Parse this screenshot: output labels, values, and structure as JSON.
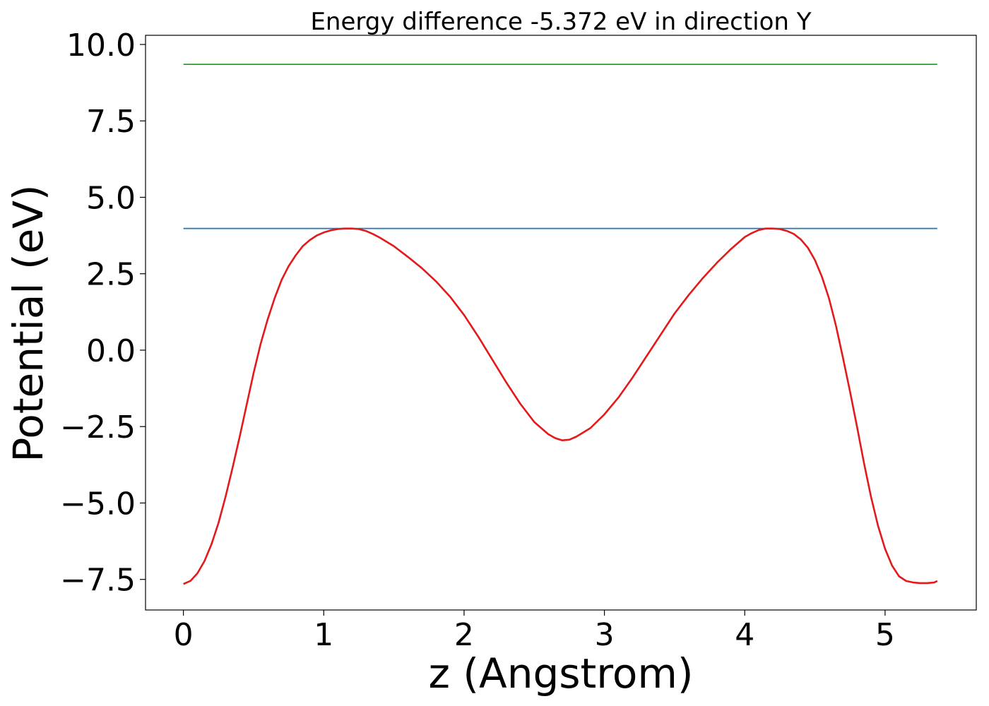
{
  "chart_data": {
    "type": "line",
    "title": "Energy difference -5.372 eV in direction Y",
    "xlabel": "z (Angstrom)",
    "ylabel": "Potential (eV)",
    "xlim": [
      -0.27,
      5.65
    ],
    "ylim": [
      -8.5,
      10.3
    ],
    "grid": false,
    "legend": "none",
    "x_ticks": [
      {
        "value": 0,
        "label": "0"
      },
      {
        "value": 1,
        "label": "1"
      },
      {
        "value": 2,
        "label": "2"
      },
      {
        "value": 3,
        "label": "3"
      },
      {
        "value": 4,
        "label": "4"
      },
      {
        "value": 5,
        "label": "5"
      }
    ],
    "y_ticks": [
      {
        "value": -7.5,
        "label": "−7.5"
      },
      {
        "value": -5.0,
        "label": "−5.0"
      },
      {
        "value": -2.5,
        "label": "−2.5"
      },
      {
        "value": 0.0,
        "label": "0.0"
      },
      {
        "value": 2.5,
        "label": "2.5"
      },
      {
        "value": 5.0,
        "label": "5.0"
      },
      {
        "value": 7.5,
        "label": "7.5"
      },
      {
        "value": 10.0,
        "label": "10.0"
      }
    ],
    "series": [
      {
        "color": "#2ca02c",
        "x": [
          0,
          5.372
        ],
        "y": [
          9.35,
          9.35
        ]
      },
      {
        "color": "#1f77b4",
        "x": [
          0,
          5.372
        ],
        "y": [
          3.98,
          3.98
        ]
      },
      {
        "color": "#e31a1c",
        "x": [
          0.0,
          0.05,
          0.1,
          0.15,
          0.2,
          0.25,
          0.3,
          0.35,
          0.4,
          0.45,
          0.5,
          0.55,
          0.6,
          0.65,
          0.7,
          0.75,
          0.8,
          0.85,
          0.9,
          0.95,
          1.0,
          1.05,
          1.1,
          1.15,
          1.2,
          1.25,
          1.3,
          1.35,
          1.4,
          1.5,
          1.6,
          1.7,
          1.8,
          1.9,
          2.0,
          2.1,
          2.2,
          2.3,
          2.4,
          2.5,
          2.6,
          2.65,
          2.7,
          2.75,
          2.8,
          2.9,
          3.0,
          3.1,
          3.2,
          3.3,
          3.4,
          3.5,
          3.6,
          3.7,
          3.8,
          3.9,
          4.0,
          4.05,
          4.1,
          4.15,
          4.2,
          4.25,
          4.3,
          4.35,
          4.4,
          4.45,
          4.5,
          4.55,
          4.6,
          4.65,
          4.7,
          4.75,
          4.8,
          4.85,
          4.9,
          4.95,
          5.0,
          5.05,
          5.1,
          5.15,
          5.2,
          5.25,
          5.3,
          5.35,
          5.372
        ],
        "y": [
          -7.65,
          -7.55,
          -7.3,
          -6.9,
          -6.35,
          -5.65,
          -4.8,
          -3.85,
          -2.85,
          -1.8,
          -0.75,
          0.2,
          1.0,
          1.7,
          2.3,
          2.75,
          3.1,
          3.4,
          3.6,
          3.75,
          3.85,
          3.92,
          3.96,
          3.98,
          3.98,
          3.96,
          3.9,
          3.8,
          3.68,
          3.4,
          3.05,
          2.68,
          2.25,
          1.75,
          1.15,
          0.45,
          -0.3,
          -1.05,
          -1.75,
          -2.35,
          -2.75,
          -2.88,
          -2.95,
          -2.93,
          -2.83,
          -2.55,
          -2.1,
          -1.55,
          -0.9,
          -0.2,
          0.5,
          1.2,
          1.8,
          2.35,
          2.85,
          3.3,
          3.7,
          3.83,
          3.93,
          3.98,
          3.98,
          3.96,
          3.9,
          3.8,
          3.62,
          3.35,
          2.95,
          2.4,
          1.7,
          0.8,
          -0.25,
          -1.35,
          -2.5,
          -3.7,
          -4.8,
          -5.75,
          -6.5,
          -7.05,
          -7.4,
          -7.55,
          -7.6,
          -7.62,
          -7.62,
          -7.6,
          -7.55
        ]
      }
    ]
  }
}
